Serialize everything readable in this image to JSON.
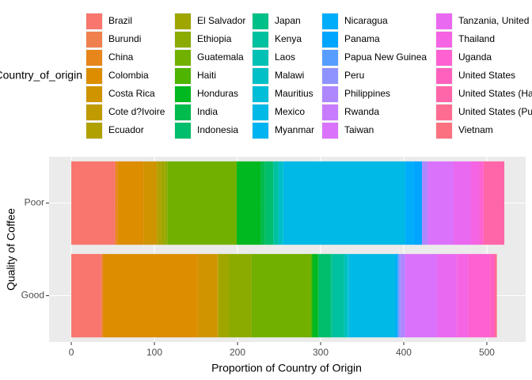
{
  "chart_data": {
    "type": "stacked-barh",
    "x_label": "Proportion of Country of Origin",
    "y_label": "Quality of Coffee",
    "legend_title": "Country_of_origin",
    "categories": [
      "Poor",
      "Good"
    ],
    "xlim": [
      -26.7,
      546.7
    ],
    "xticks": [
      0,
      100,
      200,
      300,
      400,
      500
    ],
    "grid": true,
    "series": [
      {
        "name": "Brazil",
        "color": "#F8766D",
        "values": [
          53,
          36
        ]
      },
      {
        "name": "Burundi",
        "color": "#F07F4E",
        "values": [
          0,
          1
        ]
      },
      {
        "name": "China",
        "color": "#E7861B",
        "values": [
          3,
          2
        ]
      },
      {
        "name": "Colombia",
        "color": "#DC8D00",
        "values": [
          31,
          113
        ]
      },
      {
        "name": "Costa Rica",
        "color": "#CF9400",
        "values": [
          16,
          24
        ]
      },
      {
        "name": "Cote d?Ivoire",
        "color": "#C09B00",
        "values": [
          0,
          1
        ]
      },
      {
        "name": "Ecuador",
        "color": "#B0A100",
        "values": [
          5,
          0
        ]
      },
      {
        "name": "El Salvador",
        "color": "#9FA600",
        "values": [
          5,
          13
        ]
      },
      {
        "name": "Ethiopia",
        "color": "#8BAB00",
        "values": [
          3,
          27
        ]
      },
      {
        "name": "Guatemala",
        "color": "#72B000",
        "values": [
          83,
          71
        ]
      },
      {
        "name": "Haiti",
        "color": "#4FB400",
        "values": [
          0,
          2
        ]
      },
      {
        "name": "Honduras",
        "color": "#00B81F",
        "values": [
          29,
          7
        ]
      },
      {
        "name": "India",
        "color": "#00BB4E",
        "values": [
          5,
          1
        ]
      },
      {
        "name": "Indonesia",
        "color": "#00BE6C",
        "values": [
          10,
          14
        ]
      },
      {
        "name": "Japan",
        "color": "#00C087",
        "values": [
          0,
          2
        ]
      },
      {
        "name": "Kenya",
        "color": "#00C19F",
        "values": [
          6,
          14
        ]
      },
      {
        "name": "Laos",
        "color": "#00C1B4",
        "values": [
          0,
          2
        ]
      },
      {
        "name": "Malawi",
        "color": "#00C0C7",
        "values": [
          6,
          3
        ]
      },
      {
        "name": "Mauritius",
        "color": "#00BDD8",
        "values": [
          0,
          1
        ]
      },
      {
        "name": "Mexico",
        "color": "#00B9E7",
        "values": [
          147,
          56
        ]
      },
      {
        "name": "Myanmar",
        "color": "#00B4F2",
        "values": [
          0,
          0
        ]
      },
      {
        "name": "Nicaragua",
        "color": "#00ADFB",
        "values": [
          10,
          2
        ]
      },
      {
        "name": "Panama",
        "color": "#00A5FF",
        "values": [
          10,
          1
        ]
      },
      {
        "name": "Papua New Guinea",
        "color": "#569DFF",
        "values": [
          0,
          1
        ]
      },
      {
        "name": "Peru",
        "color": "#8E93FF",
        "values": [
          0,
          2
        ]
      },
      {
        "name": "Philippines",
        "color": "#AE87FF",
        "values": [
          7,
          5
        ]
      },
      {
        "name": "Rwanda",
        "color": "#C77CFF",
        "values": [
          0,
          1
        ]
      },
      {
        "name": "Taiwan",
        "color": "#DB72FB",
        "values": [
          31,
          38
        ]
      },
      {
        "name": "Tanzania, United Republic Of",
        "color": "#EA69F1",
        "values": [
          21,
          24
        ]
      },
      {
        "name": "Thailand",
        "color": "#F564E3",
        "values": [
          10,
          14
        ]
      },
      {
        "name": "Uganda",
        "color": "#FD61D2",
        "values": [
          5,
          26
        ]
      },
      {
        "name": "United States",
        "color": "#FF61BE",
        "values": [
          0,
          6
        ]
      },
      {
        "name": "United States (Hawaii)",
        "color": "#FF65A9",
        "values": [
          25,
          0
        ]
      },
      {
        "name": "United States (Puerto Rico)",
        "color": "#FF6C92",
        "values": [
          0,
          0
        ]
      },
      {
        "name": "Vietnam",
        "color": "#FC717F",
        "values": [
          0,
          2
        ]
      }
    ]
  }
}
